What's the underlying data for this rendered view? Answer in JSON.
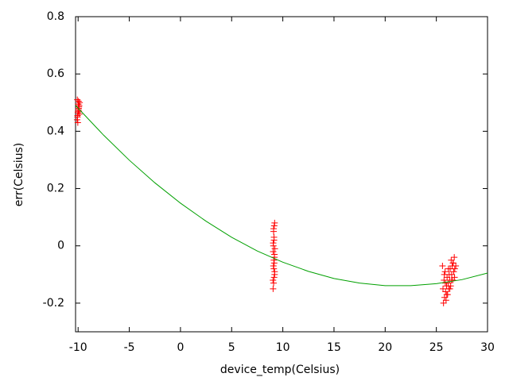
{
  "chart_data": {
    "type": "scatter",
    "xlabel": "device_temp(Celsius)",
    "ylabel": "err(Celsius)",
    "xlim": [
      -10.25,
      30
    ],
    "xticks": [
      -10,
      -5,
      0,
      5,
      10,
      15,
      20,
      25,
      30
    ],
    "ylim": [
      -0.3,
      0.8
    ],
    "yticks": [
      -0.2,
      0,
      0.2,
      0.4,
      0.6,
      0.8
    ],
    "series": [
      {
        "type": "scatter",
        "color": "#ff0000",
        "x": [
          -10.1,
          -10.05,
          -10.0,
          -9.95,
          -9.9,
          -9.85,
          -10.08,
          -10.02,
          -9.97,
          -9.92,
          -9.88,
          -10.06,
          -9.99,
          -9.93,
          -10.03,
          -9.96
        ],
        "values": [
          0.44,
          0.455,
          0.47,
          0.48,
          0.49,
          0.5,
          0.51,
          0.465,
          0.475,
          0.485,
          0.46,
          0.45,
          0.495,
          0.47,
          0.43,
          0.505
        ]
      },
      {
        "type": "scatter",
        "color": "#ff0000",
        "x": [
          9.05,
          9.1,
          9.15,
          9.2,
          9.08,
          9.12,
          9.18,
          9.22,
          9.06,
          9.14,
          9.1,
          9.16,
          9.2,
          9.04,
          9.12,
          9.18,
          9.08,
          9.14,
          9.1,
          9.2,
          9.16,
          9.06
        ],
        "values": [
          -0.15,
          -0.13,
          -0.11,
          -0.09,
          -0.07,
          -0.05,
          -0.03,
          -0.01,
          0.01,
          0.03,
          0.05,
          0.07,
          0.08,
          -0.12,
          -0.08,
          -0.04,
          0.0,
          0.02,
          0.06,
          -0.1,
          -0.06,
          -0.02
        ]
      },
      {
        "type": "scatter",
        "color": "#ff0000",
        "x": [
          25.6,
          25.7,
          25.75,
          25.8,
          25.85,
          25.9,
          25.95,
          26.0,
          26.05,
          26.1,
          26.15,
          26.2,
          26.25,
          26.3,
          26.35,
          26.4,
          26.45,
          26.5,
          26.55,
          26.6,
          26.65,
          26.7,
          26.75,
          26.8,
          25.65,
          25.78,
          25.88,
          26.02,
          26.18,
          26.32,
          26.48,
          26.62,
          26.78,
          26.9
        ],
        "values": [
          -0.07,
          -0.2,
          -0.12,
          -0.18,
          -0.09,
          -0.16,
          -0.19,
          -0.14,
          -0.11,
          -0.17,
          -0.13,
          -0.15,
          -0.1,
          -0.12,
          -0.08,
          -0.14,
          -0.05,
          -0.1,
          -0.07,
          -0.12,
          -0.06,
          -0.09,
          -0.04,
          -0.08,
          -0.15,
          -0.1,
          -0.13,
          -0.17,
          -0.08,
          -0.15,
          -0.12,
          -0.06,
          -0.11,
          -0.07
        ]
      },
      {
        "type": "line",
        "color": "#00a000",
        "x": [
          -10.25,
          -7.5,
          -5,
          -2.5,
          0,
          2.5,
          5,
          7.5,
          10,
          12.5,
          15,
          17.5,
          20,
          22.5,
          25,
          27.5,
          30
        ],
        "values": [
          0.49,
          0.386,
          0.299,
          0.22,
          0.149,
          0.086,
          0.03,
          -0.018,
          -0.057,
          -0.089,
          -0.114,
          -0.13,
          -0.139,
          -0.139,
          -0.132,
          -0.118,
          -0.095
        ]
      }
    ]
  }
}
